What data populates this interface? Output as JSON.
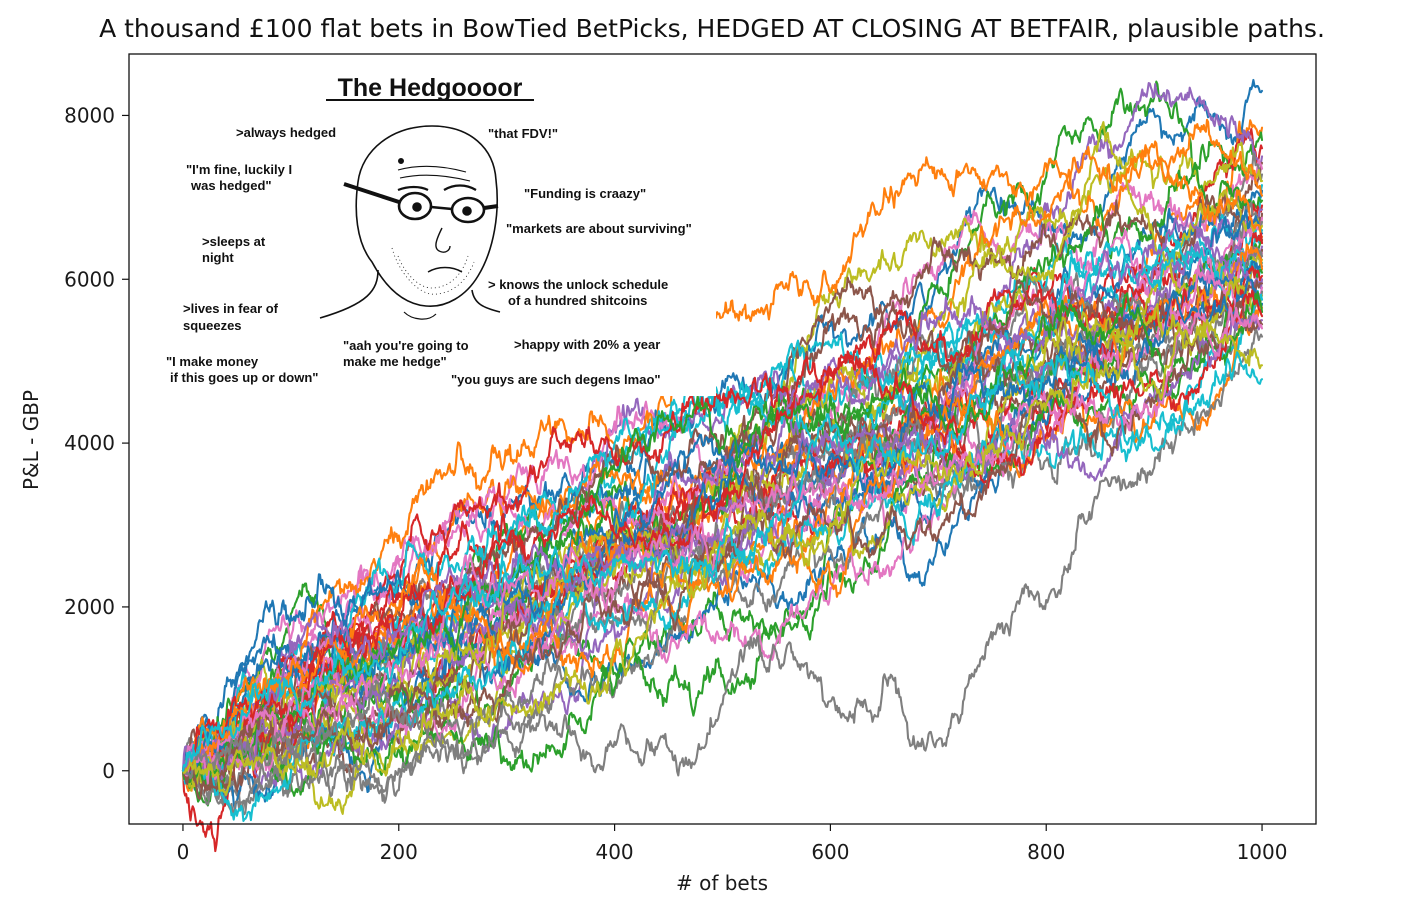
{
  "chart_data": {
    "type": "line",
    "title": "A thousand £100 flat bets in BowTied BetPicks, HEDGED AT CLOSING AT BETFAIR, plausible paths.",
    "xlabel": "# of bets",
    "ylabel": "P&L - GBP",
    "xlim": [
      -50,
      1050
    ],
    "ylim": [
      -650,
      8750
    ],
    "xticks": [
      0,
      200,
      400,
      600,
      800,
      1000
    ],
    "yticks": [
      0,
      2000,
      4000,
      6000,
      8000
    ],
    "grid": false,
    "legend": "none",
    "num_paths": 50,
    "bets_per_path": 1000,
    "series_end_values": [
      8300,
      7850,
      7700,
      7600,
      7500,
      7420,
      7350,
      7280,
      7200,
      7150,
      7080,
      7020,
      6960,
      6900,
      6850,
      6800,
      6750,
      6700,
      6650,
      6600,
      6560,
      6520,
      6480,
      6440,
      6400,
      6360,
      6320,
      6280,
      6240,
      6200,
      6160,
      6120,
      6080,
      6040,
      6000,
      5950,
      5900,
      5850,
      5800,
      5750,
      5700,
      5650,
      5600,
      5550,
      5500,
      5450,
      5400,
      5300,
      4950,
      4780
    ],
    "series_colors": [
      "#1f77b4",
      "#ff7f0e",
      "#2ca02c",
      "#d62728",
      "#9467bd",
      "#8c564b",
      "#e377c2",
      "#7f7f7f",
      "#bcbd22",
      "#17becf"
    ]
  },
  "meme": {
    "title": "The Hedgoooor",
    "captions": [
      ">always hedged",
      "\"that FDV!\"",
      "\"I'm fine, luckily I",
      "was hedged\"",
      "\"Funding is craazy\"",
      "\"markets are about surviving\"",
      ">sleeps at",
      "night",
      "> knows the unlock schedule",
      "of a hundred shitcoins",
      ">lives in fear of",
      "squeezes",
      "\"aah you're going to",
      "make me  hedge\"",
      ">happy with 20% a year",
      "\"I make money",
      "if this goes up or down\"",
      "\"you guys are such degens lmao\""
    ]
  }
}
